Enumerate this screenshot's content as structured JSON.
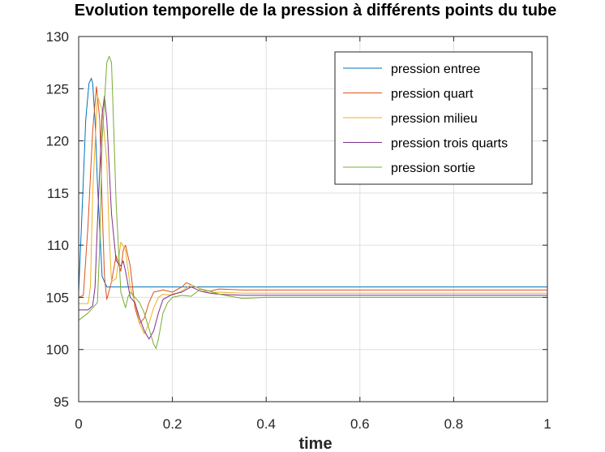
{
  "chart_data": {
    "type": "line",
    "title": "Evolution temporelle de la pression à différents points du tube",
    "xlabel": "time",
    "ylabel": "",
    "xlim": [
      0,
      1
    ],
    "ylim": [
      95,
      130
    ],
    "xticks": [
      "0",
      "0.2",
      "0.4",
      "0.6",
      "0.8",
      "1"
    ],
    "yticks": [
      "95",
      "100",
      "105",
      "110",
      "115",
      "120",
      "125",
      "130"
    ],
    "grid": true,
    "legend_position": "top-right",
    "series": [
      {
        "name": "pression entree",
        "color": "#0072bd",
        "x": [
          0,
          0.008,
          0.015,
          0.022,
          0.027,
          0.03,
          0.035,
          0.04,
          0.05,
          0.06,
          0.07,
          0.08,
          0.09,
          0.1,
          0.2,
          0.4,
          0.6,
          0.8,
          1.0
        ],
        "y": [
          105.5,
          114,
          122,
          125.5,
          126,
          125.5,
          122,
          116,
          107,
          106,
          106,
          106,
          106,
          106,
          106,
          106,
          106,
          106,
          106
        ]
      },
      {
        "name": "pression quart",
        "color": "#d95319",
        "x": [
          0,
          0.01,
          0.02,
          0.03,
          0.038,
          0.045,
          0.05,
          0.055,
          0.06,
          0.07,
          0.08,
          0.09,
          0.095,
          0.1,
          0.11,
          0.12,
          0.13,
          0.14,
          0.15,
          0.16,
          0.18,
          0.2,
          0.22,
          0.23,
          0.24,
          0.26,
          0.28,
          0.3,
          0.35,
          0.4,
          0.6,
          0.8,
          1.0
        ],
        "y": [
          105,
          105.2,
          112,
          121,
          125.2,
          122,
          114,
          107,
          104.8,
          106.5,
          109,
          107.5,
          109.5,
          110,
          108,
          104,
          102.5,
          103,
          104.5,
          105.5,
          105.7,
          105.5,
          106,
          106.4,
          106.2,
          105.8,
          105.6,
          105.8,
          105.7,
          105.7,
          105.7,
          105.7,
          105.7
        ]
      },
      {
        "name": "pression milieu",
        "color": "#edb120",
        "x": [
          0,
          0.02,
          0.025,
          0.03,
          0.04,
          0.05,
          0.06,
          0.065,
          0.07,
          0.08,
          0.09,
          0.1,
          0.11,
          0.12,
          0.13,
          0.14,
          0.15,
          0.16,
          0.17,
          0.18,
          0.2,
          0.22,
          0.24,
          0.26,
          0.28,
          0.3,
          0.35,
          0.4,
          0.6,
          0.8,
          1.0
        ],
        "y": [
          104.4,
          104.4,
          106,
          115,
          124.3,
          123,
          118,
          111,
          106.5,
          106.8,
          110.3,
          109.5,
          106,
          104.5,
          102.5,
          101.5,
          102.5,
          104,
          105,
          105.3,
          105.2,
          105.6,
          106.2,
          105.8,
          105.4,
          105.5,
          105.4,
          105.4,
          105.4,
          105.4,
          105.4
        ]
      },
      {
        "name": "pression trois quarts",
        "color": "#7e2f8e",
        "x": [
          0,
          0.02,
          0.03,
          0.035,
          0.04,
          0.05,
          0.055,
          0.06,
          0.07,
          0.08,
          0.09,
          0.095,
          0.1,
          0.11,
          0.12,
          0.13,
          0.14,
          0.15,
          0.16,
          0.17,
          0.18,
          0.2,
          0.22,
          0.24,
          0.26,
          0.28,
          0.3,
          0.35,
          0.4,
          0.6,
          0.8,
          1.0
        ],
        "y": [
          103.8,
          103.8,
          104.2,
          106,
          112,
          122.5,
          124.3,
          122,
          113,
          108.5,
          108,
          108.5,
          107.5,
          105,
          104.5,
          103,
          101.8,
          101,
          101.8,
          103.5,
          104.8,
          105.3,
          105.5,
          106,
          105.6,
          105.4,
          105.3,
          105.2,
          105.2,
          105.2,
          105.2,
          105.2
        ]
      },
      {
        "name": "pression sortie",
        "color": "#77ac30",
        "x": [
          0,
          0.02,
          0.04,
          0.045,
          0.05,
          0.06,
          0.065,
          0.07,
          0.075,
          0.08,
          0.09,
          0.1,
          0.105,
          0.11,
          0.12,
          0.13,
          0.14,
          0.15,
          0.16,
          0.165,
          0.17,
          0.18,
          0.19,
          0.2,
          0.22,
          0.24,
          0.26,
          0.28,
          0.3,
          0.35,
          0.4,
          0.6,
          0.8,
          1.0
        ],
        "y": [
          102.8,
          103.5,
          104.5,
          110,
          120,
          127.5,
          128.1,
          127.5,
          121,
          114,
          105.5,
          104,
          105,
          105.5,
          105,
          104.5,
          103.5,
          102,
          100.5,
          100.1,
          101,
          103.5,
          104.5,
          105,
          105.2,
          105.1,
          105.8,
          105.6,
          105.3,
          104.9,
          105,
          105,
          105,
          105
        ]
      }
    ]
  }
}
